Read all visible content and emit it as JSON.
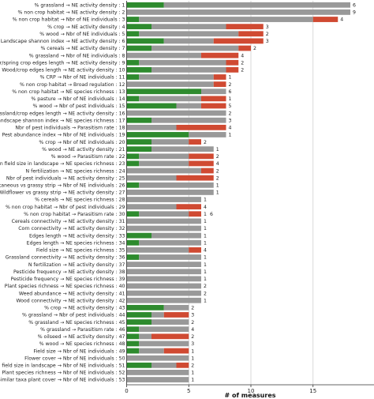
{
  "chart_data": {
    "type": "bar",
    "orientation": "horizontal",
    "stacked": true,
    "xlabel": "# of measures",
    "xlim": [
      0,
      20
    ],
    "xticks": [
      0,
      5,
      10,
      15
    ],
    "grid": true,
    "colors": {
      "green": "#2e8b2e",
      "grey": "#999999",
      "red": "#d04a32"
    },
    "rows": [
      {
        "label": "% grassland → NE activity density : 1",
        "green": 3,
        "grey": 15,
        "red": 0,
        "count_labels": [
          "6"
        ]
      },
      {
        "label": "% non crop habitat → NE activity density : 2",
        "green": 0,
        "grey": 18,
        "red": 0,
        "count_labels": [
          "9"
        ]
      },
      {
        "label": "% non crop habitat → Nbr of NE individuals : 3",
        "green": 1,
        "grey": 14,
        "red": 2,
        "count_labels": [
          "4"
        ]
      },
      {
        "label": "% crop → NE activity density : 4",
        "green": 2,
        "grey": 6,
        "red": 3,
        "count_labels": [
          "3"
        ]
      },
      {
        "label": "% wood → Nbr of NE individuals : 5",
        "green": 1,
        "grey": 8,
        "red": 2,
        "count_labels": [
          "2"
        ]
      },
      {
        "label": "Landscape shannon index → NE activity density : 6",
        "green": 3,
        "grey": 4,
        "red": 4,
        "count_labels": [
          "3"
        ]
      },
      {
        "label": "% cereals → NE activity density : 7",
        "green": 2,
        "grey": 7,
        "red": 1,
        "count_labels": [
          "2"
        ]
      },
      {
        "label": "% grassland → Nbr of NE individuals : 8",
        "green": 0,
        "grey": 6,
        "red": 3,
        "count_labels": [
          "4"
        ]
      },
      {
        "label": "Winter/spring crop edges length → NE activity density : 9",
        "green": 1,
        "grey": 7,
        "red": 1,
        "count_labels": [
          "2"
        ]
      },
      {
        "label": "Wood/crop edges length → NE activity density : 10",
        "green": 2,
        "grey": 6,
        "red": 1,
        "count_labels": [
          "2"
        ]
      },
      {
        "label": "% CRP → Nbr of NE individuals : 11",
        "green": 1,
        "grey": 6,
        "red": 1,
        "count_labels": [
          "1"
        ]
      },
      {
        "label": "% non crop habitat → Broad regulation : 12",
        "green": 0,
        "grey": 7,
        "red": 1,
        "count_labels": [
          "2"
        ]
      },
      {
        "label": "% non crop habitat → NE species richness : 13",
        "green": 6,
        "grey": 2,
        "red": 0,
        "count_labels": [
          "6"
        ]
      },
      {
        "label": "% pasture → Nbr of NE individuals : 14",
        "green": 1,
        "grey": 5,
        "red": 2,
        "count_labels": [
          "1"
        ]
      },
      {
        "label": "% wood → Nbr of pest individuals : 15",
        "green": 4,
        "grey": 2,
        "red": 2,
        "count_labels": [
          "5"
        ]
      },
      {
        "label": "Grassland/crop edges length → NE activity density : 16",
        "green": 0,
        "grey": 8,
        "red": 0,
        "count_labels": [
          "2"
        ]
      },
      {
        "label": "Landscape shannon index → NE species richness : 17",
        "green": 2,
        "grey": 6,
        "red": 0,
        "count_labels": [
          "3"
        ]
      },
      {
        "label": "Nbr of pest individuals → Parasitism rate : 18",
        "green": 0,
        "grey": 4,
        "red": 4,
        "count_labels": [
          "4"
        ]
      },
      {
        "label": "Pest abundance index → Nbr of NE individuals : 19",
        "green": 5,
        "grey": 3,
        "red": 0,
        "count_labels": [
          "1"
        ]
      },
      {
        "label": "% crop → Nbr of NE individuals : 20",
        "green": 2,
        "grey": 3,
        "red": 1,
        "count_labels": [
          "2"
        ]
      },
      {
        "label": "% wood → NE activity density : 21",
        "green": 2,
        "grey": 5,
        "red": 0,
        "count_labels": [
          "1"
        ]
      },
      {
        "label": "% wood → Parasitism rate : 22",
        "green": 1,
        "grey": 4,
        "red": 2,
        "count_labels": [
          "2"
        ]
      },
      {
        "label": "Mean field size in landscape → NE species richness : 23",
        "green": 1,
        "grey": 4,
        "red": 2,
        "count_labels": [
          "4"
        ]
      },
      {
        "label": "N fertilization → NE species richness : 24",
        "green": 0,
        "grey": 6,
        "red": 1,
        "count_labels": [
          "2"
        ]
      },
      {
        "label": "Nbr of pest individuals → NE activity density : 25",
        "green": 0,
        "grey": 4,
        "red": 3,
        "count_labels": [
          "2"
        ]
      },
      {
        "label": "Spontaneous vs grassy strip → Nbr of NE individuals : 26",
        "green": 1,
        "grey": 6,
        "red": 0,
        "count_labels": [
          "1"
        ]
      },
      {
        "label": "Wildflower vs grassy strip → NE activity density : 27",
        "green": 0,
        "grey": 7,
        "red": 0,
        "count_labels": [
          "1"
        ]
      },
      {
        "label": "% cereals → NE species richness : 28",
        "green": 0,
        "grey": 6,
        "red": 0,
        "count_labels": [
          "1"
        ]
      },
      {
        "label": "% non crop habitat → Nbr of pest individuals : 29",
        "green": 0,
        "grey": 4,
        "red": 2,
        "count_labels": [
          "4"
        ]
      },
      {
        "label": "% non crop habitat → Parasitism rate : 30",
        "green": 1,
        "grey": 4,
        "red": 1,
        "count_labels": [
          "1",
          "6"
        ]
      },
      {
        "label": "Cereals connectivity → NE activity density : 31",
        "green": 0,
        "grey": 6,
        "red": 0,
        "count_labels": [
          "1"
        ]
      },
      {
        "label": "Corn connectivity → NE activity density : 32",
        "green": 0,
        "grey": 6,
        "red": 0,
        "count_labels": [
          "1"
        ]
      },
      {
        "label": "Edges length → NE activity density : 33",
        "green": 2,
        "grey": 4,
        "red": 0,
        "count_labels": [
          "1"
        ]
      },
      {
        "label": "Edges length → NE species richness : 34",
        "green": 1,
        "grey": 5,
        "red": 0,
        "count_labels": [
          "1"
        ]
      },
      {
        "label": "Field size → NE species richness : 35",
        "green": 0,
        "grey": 5,
        "red": 1,
        "count_labels": [
          "4"
        ]
      },
      {
        "label": "Grassland connectivity → NE activity density : 36",
        "green": 1,
        "grey": 5,
        "red": 0,
        "count_labels": [
          "1"
        ]
      },
      {
        "label": "N fertilization → NE activity density : 37",
        "green": 0,
        "grey": 6,
        "red": 0,
        "count_labels": [
          "1"
        ]
      },
      {
        "label": "Pesticide frequency → NE activity density : 38",
        "green": 0,
        "grey": 6,
        "red": 0,
        "count_labels": [
          "1"
        ]
      },
      {
        "label": "Pesticide frequency → NE species richness : 39",
        "green": 0,
        "grey": 6,
        "red": 0,
        "count_labels": [
          "1"
        ]
      },
      {
        "label": "Plant species richness → NE species richness : 40",
        "green": 0,
        "grey": 6,
        "red": 0,
        "count_labels": [
          "2"
        ]
      },
      {
        "label": "Weed abundance → NE activity density : 41",
        "green": 0,
        "grey": 6,
        "red": 0,
        "count_labels": [
          "2"
        ]
      },
      {
        "label": "Wood connectivity → NE activity density : 42",
        "green": 0,
        "grey": 6,
        "red": 0,
        "count_labels": [
          "1"
        ]
      },
      {
        "label": "% crop → NE activity density : 43",
        "green": 3,
        "grey": 2,
        "red": 0,
        "count_labels": [
          "2"
        ]
      },
      {
        "label": "% grassland → Nbr of pest individuals : 44",
        "green": 2,
        "grey": 1,
        "red": 2,
        "count_labels": [
          "3"
        ]
      },
      {
        "label": "% grassland → NE species richness : 45",
        "green": 2,
        "grey": 3,
        "red": 0,
        "count_labels": [
          "2"
        ]
      },
      {
        "label": "% grassland → Parasitism rate : 46",
        "green": 1,
        "grey": 4,
        "red": 0,
        "count_labels": [
          "4"
        ]
      },
      {
        "label": "% oilseed → NE activity density : 47",
        "green": 1,
        "grey": 1,
        "red": 3,
        "count_labels": [
          "2"
        ]
      },
      {
        "label": "% wood → NE species richness : 48",
        "green": 1,
        "grey": 4,
        "red": 0,
        "count_labels": [
          "3"
        ]
      },
      {
        "label": "Field size → Nbr of NE individuals : 49",
        "green": 1,
        "grey": 2,
        "red": 2,
        "count_labels": [
          "1"
        ]
      },
      {
        "label": "Flower cover → Nbr of NE individuals : 50",
        "green": 0,
        "grey": 5,
        "red": 0,
        "count_labels": [
          "1"
        ]
      },
      {
        "label": "Mean field size in landscape → Nbr of NE individuals : 51",
        "green": 2,
        "grey": 2,
        "red": 1,
        "count_labels": [
          "2"
        ]
      },
      {
        "label": "Plant species richness → Nbr of NE individuals : 52",
        "green": 0,
        "grey": 5,
        "red": 0,
        "count_labels": [
          "1"
        ]
      },
      {
        "label": "Similar taxa plant cover → Nbr of NE individuals : 53",
        "green": 0,
        "grey": 5,
        "red": 0,
        "count_labels": [
          "1"
        ]
      }
    ]
  }
}
